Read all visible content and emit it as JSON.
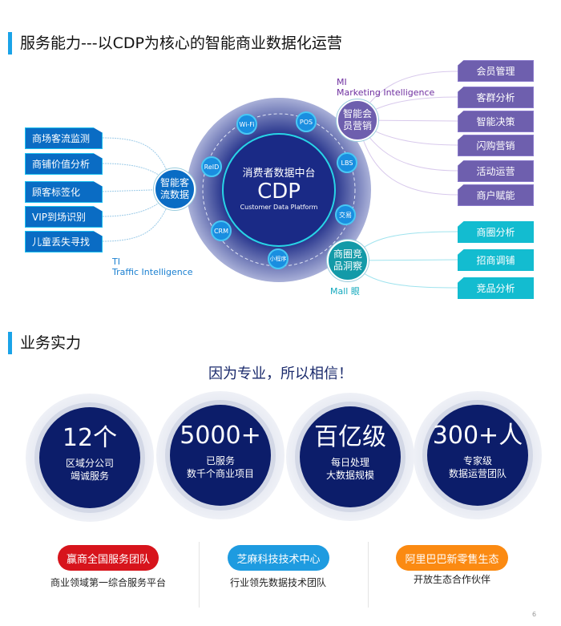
{
  "section1": {
    "title": "服务能力---以CDP为核心的智能商业数据化运营"
  },
  "cdp": {
    "cn": "消费者数据中台",
    "name": "CDP",
    "en": "Customer Data Platform",
    "nodes": [
      "Wi-Fi",
      "POS",
      "ReID",
      "LBS",
      "CRM",
      "交易",
      "小程序"
    ]
  },
  "ti": {
    "hub": "智能客流数据",
    "abbr": "TI",
    "full": "Traffic Intelligence",
    "items": [
      "商场客流监测",
      "商铺价值分析",
      "顾客标签化",
      "VIP到场识别",
      "儿童丢失寻找"
    ]
  },
  "mi": {
    "hub": "智能会员营销",
    "abbr": "MI",
    "full": "Marketing Intelligence",
    "items": [
      "会员管理",
      "客群分析",
      "智能决策",
      "闪购营销",
      "活动运营",
      "商户赋能"
    ]
  },
  "mall": {
    "hub": "商圈竞品洞察",
    "label": "Mall 眼",
    "items": [
      "商圈分析",
      "招商调铺",
      "竞品分析"
    ]
  },
  "section2": {
    "title": "业务实力",
    "slogan": "因为专业，所以相信！"
  },
  "stats": [
    {
      "big": "12个",
      "l1": "区域分公司",
      "l2": "竭诚服务"
    },
    {
      "big": "5000+",
      "l1": "已服务",
      "l2": "数千个商业项目"
    },
    {
      "big": "百亿级",
      "l1": "每日处理",
      "l2": "大数据规模"
    },
    {
      "big": "300+人",
      "l1": "专家级",
      "l2": "数据运营团队"
    }
  ],
  "partners": [
    {
      "label": "赢商全国服务团队",
      "caption": "商业领域第一综合服务平台",
      "color": "#d7141c"
    },
    {
      "label": "芝麻科技技术中心",
      "caption": "行业领先数据技术团队",
      "color": "#1e9be0"
    },
    {
      "label": "阿里巴巴新零售生态",
      "caption": "开放生态合作伙伴",
      "color": "#fb8a12"
    }
  ],
  "page_number": "6"
}
